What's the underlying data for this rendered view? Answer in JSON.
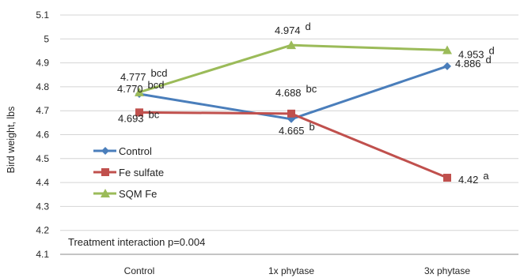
{
  "chart_data": {
    "type": "line",
    "title": "",
    "xlabel": "",
    "ylabel": "Bird weight, lbs",
    "categories": [
      "Control",
      "1x phytase",
      "3x phytase"
    ],
    "ylim": [
      4.1,
      5.1
    ],
    "yticks": [
      "4.1",
      "4.2",
      "4.3",
      "4.4",
      "4.5",
      "4.6",
      "4.7",
      "4.8",
      "4.9",
      "5",
      "5.1"
    ],
    "grid": true,
    "legend_position": "left",
    "annotation": "Treatment interaction p=0.004",
    "series": [
      {
        "name": "Control",
        "color": "#4a7ebb",
        "marker": "diamond",
        "values": [
          4.77,
          4.665,
          4.886
        ],
        "labels": [
          "4.770 bcd",
          "4.665 b",
          "4.886 d"
        ]
      },
      {
        "name": "Fe sulfate",
        "color": "#c0504d",
        "marker": "square",
        "values": [
          4.693,
          4.688,
          4.42
        ],
        "labels": [
          "4.693 bc",
          "4.688 bc",
          "4.42 a"
        ]
      },
      {
        "name": "SQM Fe",
        "color": "#9bbb59",
        "marker": "triangle",
        "values": [
          4.777,
          4.974,
          4.953
        ],
        "labels": [
          "4.777 bcd",
          "4.974 d",
          "4.953 d"
        ]
      }
    ]
  }
}
